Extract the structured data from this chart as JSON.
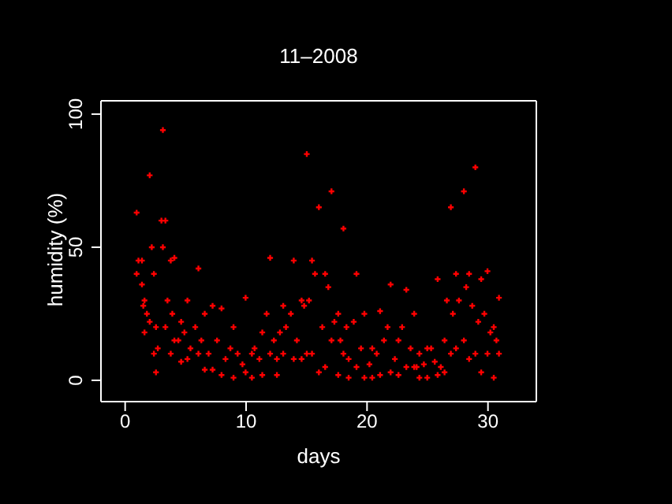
{
  "chart_data": {
    "type": "scatter",
    "title": "11–2008",
    "xlabel": "days",
    "ylabel": "humidity (%)",
    "xlim": [
      -2,
      34
    ],
    "xticks": [
      0,
      10,
      20,
      30
    ],
    "ylim": [
      -8,
      105
    ],
    "yticks": [
      0,
      50,
      100
    ],
    "marker": "cross",
    "series": [
      {
        "color": "#ff0000",
        "x": [
          0.95,
          0.95,
          1.39,
          1.39,
          1.6,
          1.6,
          2.03,
          2.03,
          2.38,
          2.38,
          2.55,
          2.55,
          3.12,
          3.12,
          3.33,
          3.33,
          3.77,
          3.77,
          4.07,
          4.07,
          4.63,
          4.63,
          5.15,
          5.15,
          6.06,
          6.06,
          6.58,
          6.58,
          7.23,
          7.23,
          7.97,
          7.97,
          8.96,
          8.96,
          9.96,
          9.96,
          10.48,
          10.48,
          11.34,
          11.34,
          11.99,
          11.99,
          12.55,
          12.55,
          13.07,
          13.07,
          13.94,
          13.94,
          14.59,
          14.59,
          15.02,
          15.02,
          15.45,
          15.45,
          16.02,
          16.02,
          16.54,
          16.54,
          17.06,
          17.06,
          17.62,
          17.62,
          18.05,
          18.05,
          18.48,
          18.48,
          19.13,
          19.13,
          19.78,
          19.78,
          20.43,
          20.43,
          21.08,
          21.08,
          21.95,
          21.95,
          22.6,
          22.6,
          23.25,
          23.25,
          23.9,
          23.9,
          24.33,
          24.33,
          24.98,
          24.98,
          25.84,
          25.84,
          26.41,
          26.41,
          26.93,
          26.93,
          27.36,
          27.36,
          28.01,
          28.01,
          28.44,
          28.44,
          28.96,
          28.96,
          29.44,
          29.44,
          29.96,
          29.96,
          30.48,
          30.48,
          30.91,
          30.91,
          1.1,
          1.5,
          1.8,
          2.2,
          2.7,
          3.0,
          3.5,
          3.9,
          4.4,
          4.9,
          5.4,
          5.8,
          6.3,
          6.9,
          7.6,
          8.3,
          8.7,
          9.3,
          9.7,
          10.7,
          11.1,
          11.7,
          12.3,
          12.8,
          13.3,
          13.7,
          14.2,
          14.8,
          15.2,
          15.7,
          16.3,
          16.8,
          17.3,
          17.8,
          18.3,
          18.9,
          19.5,
          20.2,
          20.8,
          21.4,
          21.7,
          22.3,
          22.9,
          23.6,
          24.1,
          24.7,
          25.3,
          25.6,
          26.1,
          26.6,
          27.1,
          27.6,
          28.2,
          28.7,
          29.2,
          29.7,
          30.2,
          30.7
        ],
        "values": [
          63,
          40,
          45,
          36,
          30,
          18,
          77,
          22,
          40,
          10,
          20,
          3,
          94,
          50,
          60,
          20,
          45,
          10,
          46,
          15,
          22,
          7,
          30,
          8,
          42,
          10,
          25,
          4,
          28,
          4,
          27,
          2,
          20,
          1,
          31,
          3,
          10,
          1,
          18,
          2,
          46,
          10,
          8,
          2,
          28,
          10,
          45,
          8,
          30,
          8,
          85,
          10,
          45,
          10,
          65,
          3,
          40,
          5,
          71,
          15,
          25,
          2,
          57,
          10,
          8,
          1,
          40,
          5,
          25,
          1,
          12,
          1,
          26,
          2,
          36,
          3,
          15,
          2,
          34,
          5,
          25,
          5,
          10,
          1,
          12,
          1,
          38,
          2,
          15,
          3,
          65,
          10,
          40,
          12,
          71,
          15,
          40,
          8,
          80,
          10,
          38,
          3,
          41,
          10,
          20,
          1,
          31,
          10,
          45,
          28,
          25,
          50,
          12,
          60,
          30,
          25,
          15,
          18,
          12,
          20,
          15,
          10,
          15,
          8,
          12,
          10,
          6,
          12,
          8,
          25,
          15,
          18,
          20,
          25,
          15,
          28,
          30,
          40,
          20,
          35,
          22,
          15,
          20,
          22,
          12,
          6,
          10,
          15,
          20,
          8,
          20,
          12,
          5,
          6,
          12,
          7,
          5,
          30,
          25,
          30,
          35,
          28,
          22,
          25,
          18,
          15
        ]
      }
    ]
  }
}
